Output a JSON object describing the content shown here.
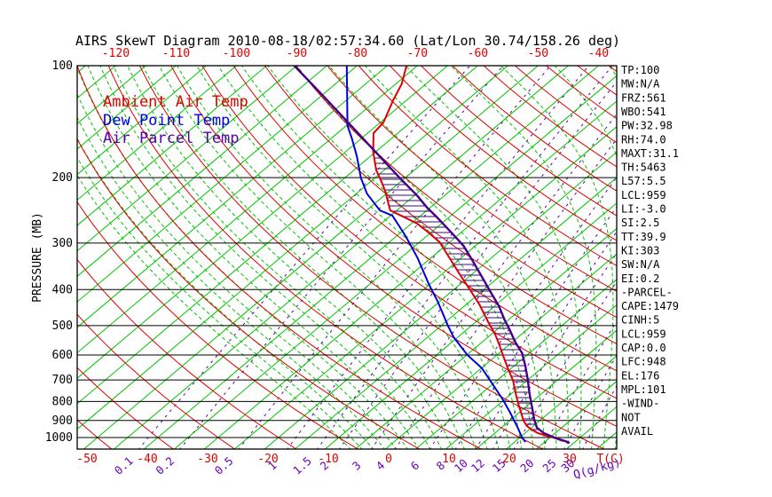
{
  "title": "AIRS SkewT Diagram 2010-08-18/02:57:34.60 (Lat/Lon 30.74/158.26 deg)",
  "legend": [
    {
      "label": "Ambient Air Temp",
      "color": "#e00000"
    },
    {
      "label": "Dew Point Temp",
      "color": "#0000dd"
    },
    {
      "label": "Air Parcel Temp",
      "color": "#5a00aa"
    }
  ],
  "axes": {
    "pressure_label": "PRESSURE (MB)",
    "pressure_ticks": [
      100,
      200,
      300,
      400,
      500,
      600,
      700,
      800,
      900,
      1000
    ],
    "temp_axis_label": "T(C)",
    "temp_ticks_top": [
      -120,
      -110,
      -100,
      -90,
      -80,
      -70,
      -60,
      -50,
      -40
    ],
    "temp_ticks_bottom": [
      -50,
      -40,
      -30,
      -20,
      -10,
      0,
      10,
      20,
      30
    ],
    "mixing_axis_label": "Q(g/kg)",
    "mixing_ticks": [
      0.1,
      0.2,
      0.5,
      1,
      1.5,
      2,
      3,
      4,
      6,
      8,
      10,
      12,
      15,
      20,
      25,
      30
    ]
  },
  "stats": [
    "TP:100",
    "MW:N/A",
    "FRZ:561",
    "WBO:541",
    "PW:32.98",
    "RH:74.0",
    "MAXT:31.1",
    "TH:5463",
    "L57:5.5",
    "LCL:959",
    "LI:-3.0",
    "SI:2.5",
    "TT:39.9",
    "KI:303",
    "SW:N/A",
    "EI:0.2",
    "-PARCEL-",
    "CAPE:1479",
    "CINH:5",
    "LCL:959",
    "CAP:0.0",
    "LFC:948",
    "EL:176",
    "MPL:101",
    "-WIND-",
    "NOT",
    "AVAIL"
  ],
  "colors": {
    "isotherm": "#00c400",
    "dry_adiabat": "#e00000",
    "moist_adiabat": "#00c400",
    "mixing_ratio": "#5a00aa",
    "pressure_line": "#000000",
    "frame": "#000000",
    "ambient": "#e00000",
    "dewpoint": "#0000dd",
    "parcel": "#440088",
    "hatch": "#440088",
    "tick_red": "#e00000",
    "tick_purple": "#6a00bb",
    "text_black": "#000000"
  },
  "chart_data": {
    "type": "line",
    "subtype": "skewt-log-p",
    "title": "AIRS SkewT Diagram 2010-08-18/02:57:34.60 (Lat/Lon 30.74/158.26 deg)",
    "xlabel": "T(C)",
    "ylabel": "PRESSURE (MB)",
    "pressure_range_mb": [
      100,
      1080
    ],
    "surface_temp_range_c": [
      -52,
      38
    ],
    "grid": {
      "isotherm_step_c": 5,
      "isotherm_range_c": [
        -125,
        40
      ],
      "dry_adiabat_step_c": 10,
      "dry_adiabat_theta_range_c": [
        -60,
        190
      ],
      "moist_adiabat_step_c": 2,
      "moist_adiabat_thetaw_range_c": [
        -10,
        40
      ],
      "mixing_ratio_lines_gkg": [
        0.1,
        0.2,
        0.5,
        1,
        1.5,
        2,
        3,
        4,
        6,
        8,
        10,
        12,
        15,
        20,
        25,
        30
      ],
      "pressure_lines_mb": [
        200,
        300,
        400,
        500,
        600,
        700,
        800,
        900,
        1000
      ]
    },
    "hatch_region": {
      "between": [
        "parcel",
        "ambient"
      ],
      "from_mb": 176,
      "to_mb": 955
    },
    "series": [
      {
        "name": "Ambient Air Temp",
        "key": "ambient",
        "color": "#e00000",
        "points_p_t": [
          [
            100,
            -71.8
          ],
          [
            112,
            -69.0
          ],
          [
            124,
            -67.2
          ],
          [
            142,
            -64.5
          ],
          [
            152,
            -64.0
          ],
          [
            171,
            -60.3
          ],
          [
            191,
            -56.3
          ],
          [
            204,
            -53.4
          ],
          [
            218,
            -50.6
          ],
          [
            245,
            -46.1
          ],
          [
            255,
            -42.6
          ],
          [
            266,
            -39.0
          ],
          [
            281,
            -35.4
          ],
          [
            298,
            -31.7
          ],
          [
            319,
            -28.4
          ],
          [
            340,
            -25.3
          ],
          [
            370,
            -21.2
          ],
          [
            402,
            -17.1
          ],
          [
            438,
            -12.9
          ],
          [
            484,
            -8.4
          ],
          [
            503,
            -6.6
          ],
          [
            531,
            -4.1
          ],
          [
            558,
            -2.0
          ],
          [
            603,
            1.2
          ],
          [
            651,
            4.4
          ],
          [
            703,
            7.7
          ],
          [
            760,
            10.6
          ],
          [
            807,
            12.9
          ],
          [
            857,
            15.3
          ],
          [
            901,
            17.3
          ],
          [
            931,
            18.9
          ],
          [
            952,
            20.4
          ],
          [
            973,
            22.1
          ],
          [
            989,
            24.1
          ],
          [
            1005,
            26.1
          ],
          [
            1022,
            27.9
          ]
        ]
      },
      {
        "name": "Dew Point Temp",
        "key": "dewpoint",
        "color": "#0000dd",
        "points_p_t": [
          [
            100,
            -81.7
          ],
          [
            145,
            -69.8
          ],
          [
            158,
            -66.3
          ],
          [
            175,
            -62.3
          ],
          [
            200,
            -57.4
          ],
          [
            221,
            -53.2
          ],
          [
            245,
            -47.8
          ],
          [
            253,
            -44.7
          ],
          [
            286,
            -38.7
          ],
          [
            329,
            -32.2
          ],
          [
            386,
            -25.3
          ],
          [
            431,
            -20.3
          ],
          [
            500,
            -13.9
          ],
          [
            537,
            -10.7
          ],
          [
            600,
            -4.9
          ],
          [
            651,
            0.1
          ],
          [
            707,
            4.2
          ],
          [
            790,
            9.7
          ],
          [
            857,
            13.5
          ],
          [
            936,
            17.5
          ],
          [
            994,
            20.1
          ],
          [
            1028,
            21.8
          ]
        ]
      },
      {
        "name": "Air Parcel Temp",
        "key": "parcel",
        "color": "#440088",
        "points_p_t": [
          [
            100,
            -90.4
          ],
          [
            117,
            -81.4
          ],
          [
            140,
            -71.2
          ],
          [
            167,
            -61.2
          ],
          [
            200,
            -51.0
          ],
          [
            224,
            -44.4
          ],
          [
            240,
            -40.7
          ],
          [
            256,
            -36.9
          ],
          [
            283,
            -31.2
          ],
          [
            305,
            -27.0
          ],
          [
            337,
            -22.2
          ],
          [
            370,
            -17.8
          ],
          [
            408,
            -13.2
          ],
          [
            443,
            -9.3
          ],
          [
            484,
            -5.5
          ],
          [
            509,
            -3.2
          ],
          [
            555,
            0.6
          ],
          [
            593,
            3.8
          ],
          [
            641,
            6.8
          ],
          [
            700,
            10.0
          ],
          [
            760,
            12.9
          ],
          [
            834,
            16.3
          ],
          [
            891,
            18.7
          ],
          [
            941,
            20.9
          ],
          [
            973,
            23.1
          ],
          [
            1000,
            25.7
          ],
          [
            1022,
            28.2
          ],
          [
            1034,
            29.3
          ]
        ]
      }
    ]
  }
}
